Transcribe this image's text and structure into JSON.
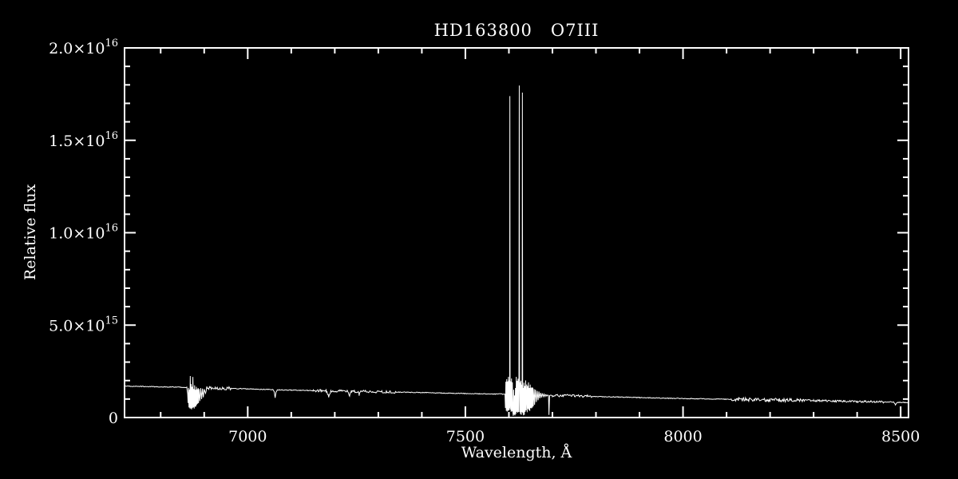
{
  "chart_data": {
    "type": "line",
    "title": "HD163800   O7III",
    "xlabel": "Wavelength, Å",
    "ylabel": "Relative flux",
    "background": "#000000",
    "line_color": "#ffffff",
    "axis_color": "#ffffff",
    "xlim": [
      6717,
      8518
    ],
    "ylim": [
      0,
      2e+16
    ],
    "x_major_ticks": [
      7000,
      7500,
      8000,
      8500
    ],
    "x_major_labels": [
      "7000",
      "7500",
      "8000",
      "8500"
    ],
    "x_minor_step": 100,
    "y_major_ticks": [
      0,
      5000000000000000.0,
      1e+16,
      1.5e+16,
      2e+16
    ],
    "y_major_labels": [
      "0",
      "5.0×10^15",
      "1.0×10^16",
      "1.5×10^16",
      "2.0×10^16"
    ],
    "y_minor_step": 1000000000000000.0,
    "grid": false,
    "legend": false,
    "flux_scale": 1000000000000000.0,
    "features": {
      "continuum_start_1e15": 1.7,
      "continuum_end_1e15": 0.82,
      "telluric_B_band": [
        6862,
        6906
      ],
      "telluric_A_band": [
        7591,
        7700
      ],
      "emission_spikes": [
        [
          7602,
          1.74e+16
        ],
        [
          7624,
          1.8e+16
        ],
        [
          7631,
          1.76e+16
        ]
      ]
    },
    "noise_regions": [
      [
        6717,
        8518,
        0.02
      ],
      [
        6906,
        6960,
        0.07
      ],
      [
        7150,
        7340,
        0.05
      ],
      [
        7700,
        7790,
        0.05
      ],
      [
        8110,
        8270,
        0.08
      ],
      [
        8270,
        8460,
        0.04
      ]
    ],
    "series": [
      {
        "name": "spectrum",
        "points": [
          [
            6717,
            1.7
          ],
          [
            6760,
            1.68
          ],
          [
            6800,
            1.66
          ],
          [
            6845,
            1.64
          ],
          [
            6860,
            1.63
          ],
          [
            6862,
            1.3
          ],
          [
            6863,
            0.8
          ],
          [
            6864,
            1.6
          ],
          [
            6865,
            0.55
          ],
          [
            6866,
            1.5
          ],
          [
            6867,
            0.5
          ],
          [
            6868,
            2.25
          ],
          [
            6869,
            0.5
          ],
          [
            6870,
            1.8
          ],
          [
            6871,
            0.45
          ],
          [
            6872,
            1.65
          ],
          [
            6873,
            0.5
          ],
          [
            6874,
            2.2
          ],
          [
            6875,
            0.55
          ],
          [
            6876,
            1.55
          ],
          [
            6877,
            0.5
          ],
          [
            6878,
            1.75
          ],
          [
            6879,
            0.6
          ],
          [
            6880,
            1.5
          ],
          [
            6881,
            0.6
          ],
          [
            6882,
            1.65
          ],
          [
            6883,
            0.7
          ],
          [
            6884,
            1.55
          ],
          [
            6885,
            0.75
          ],
          [
            6886,
            1.6
          ],
          [
            6887,
            0.8
          ],
          [
            6888,
            1.55
          ],
          [
            6890,
            0.9
          ],
          [
            6892,
            1.6
          ],
          [
            6894,
            1.0
          ],
          [
            6896,
            1.55
          ],
          [
            6898,
            1.1
          ],
          [
            6900,
            1.55
          ],
          [
            6903,
            1.3
          ],
          [
            6906,
            1.6
          ],
          [
            6920,
            1.6
          ],
          [
            6950,
            1.58
          ],
          [
            7000,
            1.55
          ],
          [
            7040,
            1.52
          ],
          [
            7058,
            1.51
          ],
          [
            7061,
            1.38
          ],
          [
            7063,
            1.05
          ],
          [
            7065,
            1.38
          ],
          [
            7068,
            1.5
          ],
          [
            7100,
            1.48
          ],
          [
            7150,
            1.46
          ],
          [
            7180,
            1.45
          ],
          [
            7186,
            1.15
          ],
          [
            7191,
            1.44
          ],
          [
            7230,
            1.42
          ],
          [
            7234,
            1.18
          ],
          [
            7238,
            1.42
          ],
          [
            7253,
            1.41
          ],
          [
            7256,
            1.22
          ],
          [
            7260,
            1.41
          ],
          [
            7300,
            1.39
          ],
          [
            7350,
            1.37
          ],
          [
            7400,
            1.35
          ],
          [
            7450,
            1.32
          ],
          [
            7500,
            1.3
          ],
          [
            7550,
            1.28
          ],
          [
            7588,
            1.27
          ],
          [
            7591,
            1.26
          ],
          [
            7592,
            0.5
          ],
          [
            7593,
            1.95
          ],
          [
            7594,
            0.35
          ],
          [
            7595,
            2.1
          ],
          [
            7596,
            0.3
          ],
          [
            7597,
            1.95
          ],
          [
            7598,
            0.35
          ],
          [
            7599,
            2.2
          ],
          [
            7600,
            0.4
          ],
          [
            7601,
            2.0
          ],
          [
            7601.6,
            0.5
          ],
          [
            7602.2,
            17.4
          ],
          [
            7602.8,
            0.4
          ],
          [
            7604,
            1.95
          ],
          [
            7605,
            0.3
          ],
          [
            7606,
            2.1
          ],
          [
            7607,
            0.35
          ],
          [
            7608,
            1.9
          ],
          [
            7609,
            0.3
          ],
          [
            7610,
            0.1
          ],
          [
            7611,
            1.5
          ],
          [
            7612,
            0.15
          ],
          [
            7613,
            1.2
          ],
          [
            7614,
            0.1
          ],
          [
            7615,
            1.6
          ],
          [
            7616,
            0.2
          ],
          [
            7617,
            2.2
          ],
          [
            7618,
            0.3
          ],
          [
            7619,
            2.0
          ],
          [
            7620,
            0.25
          ],
          [
            7621,
            2.1
          ],
          [
            7622,
            0.3
          ],
          [
            7623,
            2.0
          ],
          [
            7623.8,
            17.95
          ],
          [
            7624.6,
            0.3
          ],
          [
            7625.5,
            1.9
          ],
          [
            7626.5,
            0.2
          ],
          [
            7627.5,
            2.0
          ],
          [
            7628.5,
            0.15
          ],
          [
            7629.5,
            1.8
          ],
          [
            7630.3,
            0.3
          ],
          [
            7631,
            17.6
          ],
          [
            7631.7,
            0.25
          ],
          [
            7632.5,
            1.6
          ],
          [
            7633.5,
            0.1
          ],
          [
            7634.5,
            1.9
          ],
          [
            7635.5,
            0.15
          ],
          [
            7636.5,
            1.7
          ],
          [
            7637.5,
            0.3
          ],
          [
            7638.5,
            2.0
          ],
          [
            7639.5,
            0.4
          ],
          [
            7641,
            1.8
          ],
          [
            7642,
            0.3
          ],
          [
            7643,
            1.7
          ],
          [
            7644,
            0.45
          ],
          [
            7645,
            1.9
          ],
          [
            7646,
            0.4
          ],
          [
            7647,
            1.6
          ],
          [
            7648,
            0.35
          ],
          [
            7649,
            1.8
          ],
          [
            7650,
            0.5
          ],
          [
            7651,
            1.6
          ],
          [
            7652,
            0.5
          ],
          [
            7653,
            1.65
          ],
          [
            7654,
            0.55
          ],
          [
            7655,
            1.6
          ],
          [
            7656,
            0.6
          ],
          [
            7658,
            1.55
          ],
          [
            7659,
            0.7
          ],
          [
            7661,
            1.5
          ],
          [
            7663,
            0.85
          ],
          [
            7665,
            1.45
          ],
          [
            7667,
            0.95
          ],
          [
            7669,
            1.4
          ],
          [
            7671,
            1.05
          ],
          [
            7673,
            1.35
          ],
          [
            7675,
            1.1
          ],
          [
            7677,
            1.3
          ],
          [
            7679,
            1.13
          ],
          [
            7681,
            1.27
          ],
          [
            7683,
            1.15
          ],
          [
            7685,
            1.25
          ],
          [
            7687,
            1.17
          ],
          [
            7689,
            1.23
          ],
          [
            7691,
            1.2
          ],
          [
            7692,
            0.15
          ],
          [
            7693.5,
            1.2
          ],
          [
            7700,
            1.19
          ],
          [
            7750,
            1.17
          ],
          [
            7800,
            1.14
          ],
          [
            7850,
            1.11
          ],
          [
            7900,
            1.08
          ],
          [
            7950,
            1.05
          ],
          [
            8000,
            1.03
          ],
          [
            8050,
            1.01
          ],
          [
            8100,
            0.99
          ],
          [
            8150,
            0.97
          ],
          [
            8200,
            0.95
          ],
          [
            8250,
            0.93
          ],
          [
            8300,
            0.91
          ],
          [
            8350,
            0.89
          ],
          [
            8400,
            0.87
          ],
          [
            8450,
            0.85
          ],
          [
            8480,
            0.84
          ],
          [
            8484,
            0.83
          ],
          [
            8488,
            0.68
          ],
          [
            8492,
            0.81
          ],
          [
            8500,
            0.82
          ],
          [
            8518,
            0.81
          ]
        ]
      }
    ]
  }
}
